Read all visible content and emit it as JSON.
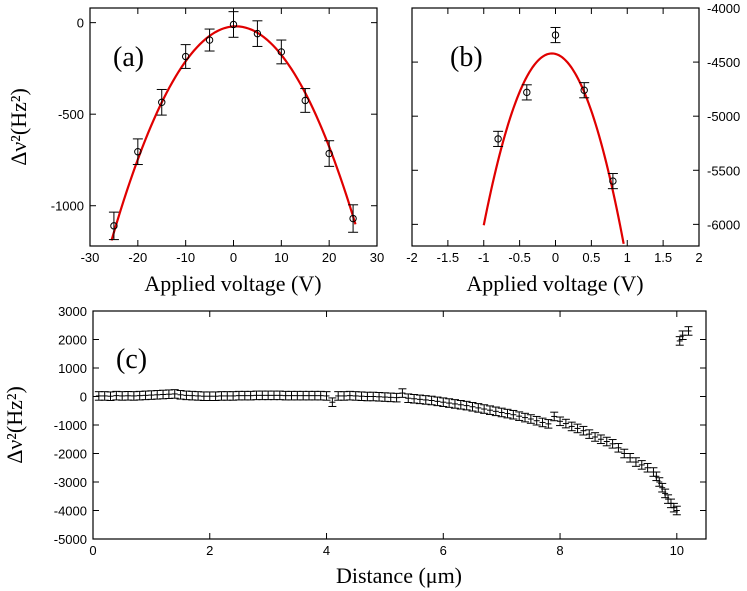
{
  "colors": {
    "fit": "#e00000",
    "points": "#000000"
  },
  "chart_data": [
    {
      "id": "a",
      "type": "scatter",
      "panel_label": "(a)",
      "xlabel": "Applied voltage (V)",
      "ylabel": "Δν²(Hz²)",
      "xlim": [
        -30,
        30
      ],
      "ylim": [
        -1220,
        80
      ],
      "xticks": [
        -30,
        -20,
        -10,
        0,
        10,
        20,
        30
      ],
      "xtick_labels": [
        "-30",
        "-20",
        "-10",
        "0",
        "10",
        "20",
        "30"
      ],
      "yticks": [
        -1000,
        -500,
        0
      ],
      "ytick_labels": [
        "-1000",
        "-500",
        "0"
      ],
      "ytick_side": "left",
      "points": [
        {
          "x": -25,
          "y": -1110,
          "err": 75
        },
        {
          "x": -20,
          "y": -705,
          "err": 70
        },
        {
          "x": -15,
          "y": -435,
          "err": 70
        },
        {
          "x": -10,
          "y": -185,
          "err": 65
        },
        {
          "x": -5,
          "y": -95,
          "err": 60
        },
        {
          "x": 0,
          "y": -10,
          "err": 70
        },
        {
          "x": 5,
          "y": -60,
          "err": 70
        },
        {
          "x": 10,
          "y": -160,
          "err": 65
        },
        {
          "x": 15,
          "y": -425,
          "err": 65
        },
        {
          "x": 20,
          "y": -715,
          "err": 70
        },
        {
          "x": 25,
          "y": -1070,
          "err": 75
        }
      ],
      "fit": {
        "type": "quadratic",
        "a": -1.73,
        "x0": 0.5,
        "c": -20,
        "xmin": -25.5,
        "xmax": 25.5
      }
    },
    {
      "id": "b",
      "type": "scatter",
      "panel_label": "(b)",
      "xlabel": "Applied voltage (V)",
      "ylabel": "",
      "xlim": [
        -2,
        2
      ],
      "ylim": [
        -6200,
        -4000
      ],
      "xticks": [
        -2,
        -1.5,
        -1,
        -0.5,
        0,
        0.5,
        1,
        1.5,
        2
      ],
      "xtick_labels": [
        "-2",
        "-1.5",
        "-1",
        "-0.5",
        "0",
        "0.5",
        "1",
        "1.5",
        "2"
      ],
      "yticks": [
        -6000,
        -5500,
        -5000,
        -4500,
        -4000
      ],
      "ytick_labels": [
        "-6000",
        "-5500",
        "-5000",
        "-4500",
        "-4000"
      ],
      "ytick_side": "right",
      "points": [
        {
          "x": -0.8,
          "y": -5210,
          "err": 70
        },
        {
          "x": -0.4,
          "y": -4780,
          "err": 70
        },
        {
          "x": 0,
          "y": -4250,
          "err": 70
        },
        {
          "x": 0.4,
          "y": -4760,
          "err": 70
        },
        {
          "x": 0.8,
          "y": -5600,
          "err": 70
        }
      ],
      "fit": {
        "type": "quadratic",
        "a": -1760,
        "x0": -0.05,
        "c": -4420,
        "xmin": -1,
        "xmax": 0.95
      }
    },
    {
      "id": "c",
      "type": "scatter",
      "panel_label": "(c)",
      "xlabel": "Distance (μm)",
      "ylabel": "Δν²(Hz²)",
      "xlim": [
        0,
        10.5
      ],
      "ylim": [
        -5000,
        3000
      ],
      "xticks": [
        0,
        2,
        4,
        6,
        8,
        10
      ],
      "xtick_labels": [
        "0",
        "2",
        "4",
        "6",
        "8",
        "10"
      ],
      "yticks": [
        -5000,
        -4000,
        -3000,
        -2000,
        -1000,
        0,
        1000,
        2000,
        3000
      ],
      "ytick_labels": [
        "-5000",
        "-4000",
        "-3000",
        "-2000",
        "-1000",
        "0",
        "1000",
        "2000",
        "3000"
      ],
      "ytick_side": "left",
      "points_x": [
        0.1,
        0.2,
        0.3,
        0.4,
        0.5,
        0.6,
        0.7,
        0.8,
        0.9,
        1.0,
        1.1,
        1.2,
        1.3,
        1.4,
        1.5,
        1.6,
        1.7,
        1.8,
        1.9,
        2.0,
        2.1,
        2.2,
        2.3,
        2.4,
        2.5,
        2.6,
        2.7,
        2.8,
        2.9,
        3.0,
        3.1,
        3.2,
        3.3,
        3.4,
        3.5,
        3.6,
        3.7,
        3.8,
        3.9,
        4.0,
        4.1,
        4.2,
        4.3,
        4.4,
        4.5,
        4.6,
        4.7,
        4.8,
        4.9,
        5.0,
        5.1,
        5.2,
        5.3,
        5.4,
        5.5,
        5.6,
        5.7,
        5.8,
        5.9,
        6.0,
        6.1,
        6.2,
        6.3,
        6.4,
        6.5,
        6.6,
        6.7,
        6.8,
        6.9,
        7.0,
        7.1,
        7.2,
        7.3,
        7.4,
        7.5,
        7.6,
        7.7,
        7.8,
        7.9,
        8.0,
        8.1,
        8.2,
        8.3,
        8.4,
        8.5,
        8.6,
        8.7,
        8.8,
        8.9,
        9.0,
        9.1,
        9.2,
        9.3,
        9.4,
        9.5,
        9.6,
        9.65,
        9.7,
        9.75,
        9.8,
        9.85,
        9.9,
        9.95,
        10.0,
        10.05,
        10.1,
        10.2
      ],
      "points_y": [
        20,
        20,
        10,
        30,
        20,
        25,
        20,
        30,
        40,
        50,
        60,
        70,
        80,
        90,
        60,
        40,
        30,
        20,
        10,
        10,
        10,
        20,
        20,
        20,
        30,
        30,
        30,
        40,
        40,
        40,
        40,
        40,
        30,
        30,
        30,
        30,
        30,
        30,
        30,
        20,
        -200,
        20,
        20,
        30,
        20,
        10,
        0,
        0,
        -10,
        -20,
        -30,
        -40,
        120,
        -60,
        -80,
        -100,
        -120,
        -140,
        -170,
        -200,
        -230,
        -260,
        -290,
        -320,
        -360,
        -400,
        -440,
        -480,
        -520,
        -560,
        -600,
        -640,
        -690,
        -740,
        -790,
        -850,
        -910,
        -960,
        -700,
        -870,
        -950,
        -1050,
        -1120,
        -1200,
        -1320,
        -1420,
        -1500,
        -1580,
        -1660,
        -1800,
        -2000,
        -2150,
        -2300,
        -2400,
        -2500,
        -2650,
        -2800,
        -3000,
        -3200,
        -3400,
        -3600,
        -3750,
        -3900,
        -4000,
        1950,
        2150,
        2300
      ],
      "err": 150
    }
  ]
}
